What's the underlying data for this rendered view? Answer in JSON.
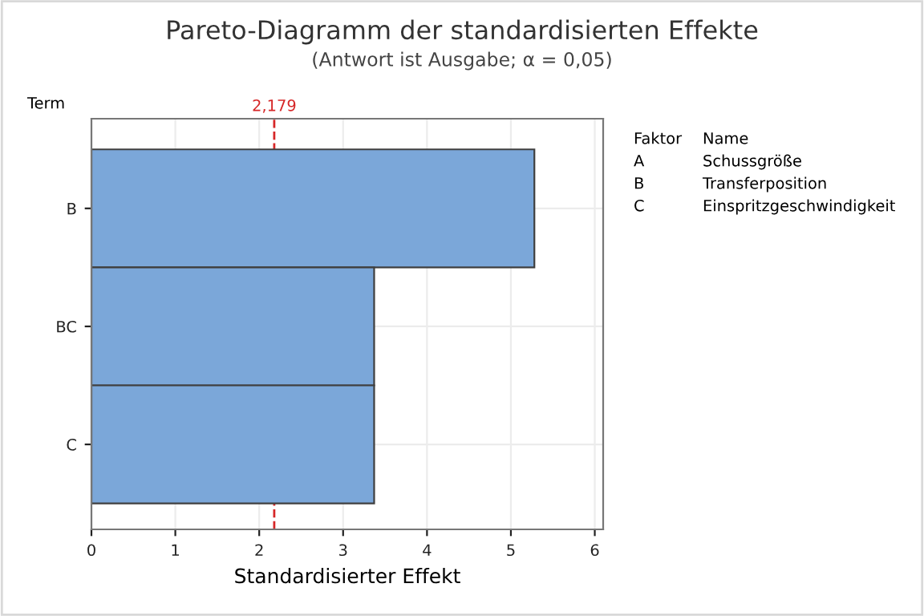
{
  "chart_data": {
    "type": "bar",
    "orientation": "horizontal",
    "title": "Pareto-Diagramm der standardisierten Effekte",
    "subtitle": "(Antwort ist Ausgabe; α = 0,05)",
    "xlabel": "Standardisierter Effekt",
    "ylabel": "Term",
    "categories": [
      "B",
      "BC",
      "C"
    ],
    "values": [
      5.28,
      3.37,
      3.37
    ],
    "color": "#7ba7d9",
    "xlim": [
      0,
      6.1
    ],
    "xticks": [
      0,
      1,
      2,
      3,
      4,
      5,
      6
    ],
    "grid": true,
    "ref_lines": [
      {
        "axis": "x",
        "value": 2.179,
        "label": "2,179",
        "color": "#d62728",
        "line_style": "dashed"
      }
    ],
    "annotations": [
      "Faktor",
      "Name",
      "A",
      "Schussgröße",
      "B",
      "Transferposition",
      "C",
      "Einspritzgeschwindigkeit"
    ]
  }
}
